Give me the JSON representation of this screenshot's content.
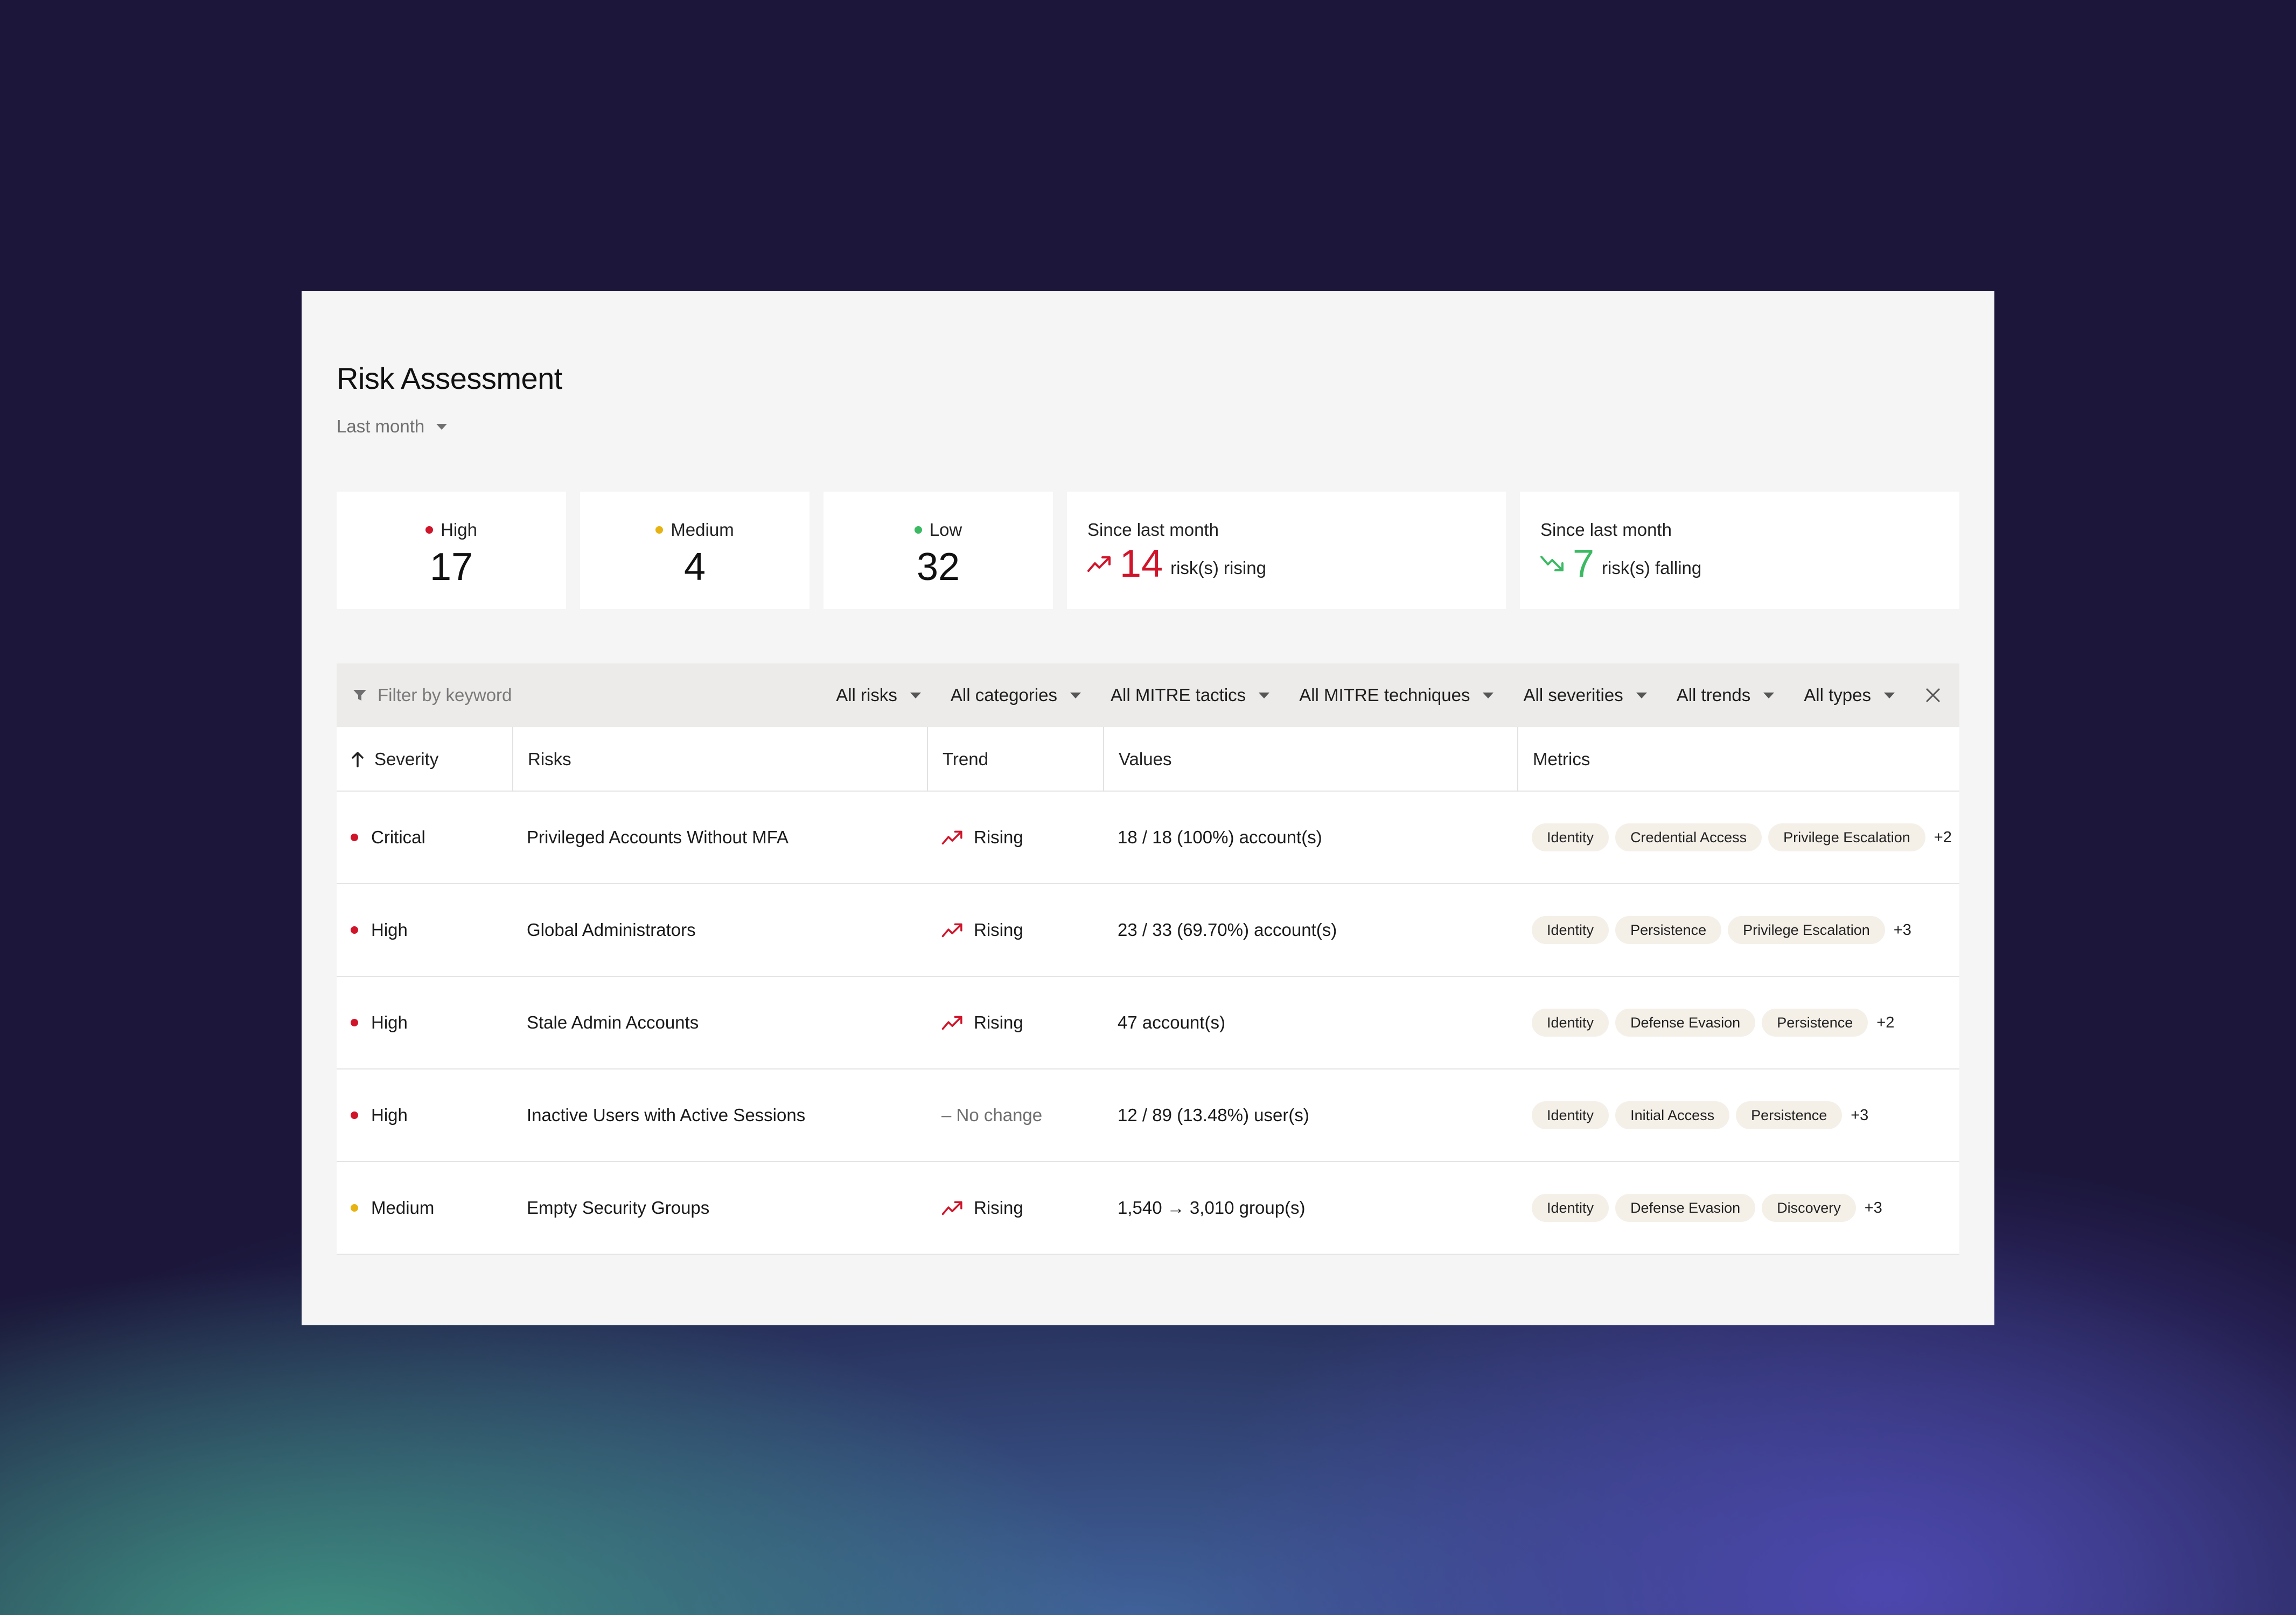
{
  "colors": {
    "high": "#d0152b",
    "medium": "#e6b312",
    "low": "#3cb963",
    "falling": "#3cb963"
  },
  "header": {
    "title": "Risk Assessment",
    "period": "Last month"
  },
  "summary": {
    "high": {
      "label": "High",
      "count": "17"
    },
    "medium": {
      "label": "Medium",
      "count": "4"
    },
    "low": {
      "label": "Low",
      "count": "32"
    },
    "rising": {
      "label": "Since last month",
      "count": "14",
      "text": "risk(s) rising"
    },
    "falling": {
      "label": "Since last month",
      "count": "7",
      "text": "risk(s) falling"
    }
  },
  "filters": {
    "placeholder": "Filter by keyword",
    "dropdowns": [
      "All risks",
      "All categories",
      "All MITRE tactics",
      "All MITRE techniques",
      "All severities",
      "All trends",
      "All types"
    ]
  },
  "table": {
    "columns": [
      "Severity",
      "Risks",
      "Trend",
      "Values",
      "Metrics"
    ],
    "rows": [
      {
        "severity": "Critical",
        "risk": "Privileged Accounts Without MFA",
        "trend": "Rising",
        "value": "18 / 18 (100%) account(s)",
        "tags": [
          "Identity",
          "Credential Access",
          "Privilege Escalation"
        ],
        "more": "+2"
      },
      {
        "severity": "High",
        "risk": "Global Administrators",
        "trend": "Rising",
        "value": "23 / 33 (69.70%) account(s)",
        "tags": [
          "Identity",
          "Persistence",
          "Privilege Escalation"
        ],
        "more": "+3"
      },
      {
        "severity": "High",
        "risk": "Stale Admin Accounts",
        "trend": "Rising",
        "value": "47 account(s)",
        "tags": [
          "Identity",
          "Defense Evasion",
          "Persistence"
        ],
        "more": "+2"
      },
      {
        "severity": "High",
        "risk": "Inactive Users with Active Sessions",
        "trend": "– No change",
        "value": "12 / 89 (13.48%) user(s)",
        "tags": [
          "Identity",
          "Initial Access",
          "Persistence"
        ],
        "more": "+3"
      },
      {
        "severity": "Medium",
        "risk": "Empty Security Groups",
        "trend": "Rising",
        "value": "1,540 → 3,010 group(s)",
        "tags": [
          "Identity",
          "Defense Evasion",
          "Discovery"
        ],
        "more": "+3"
      }
    ]
  }
}
